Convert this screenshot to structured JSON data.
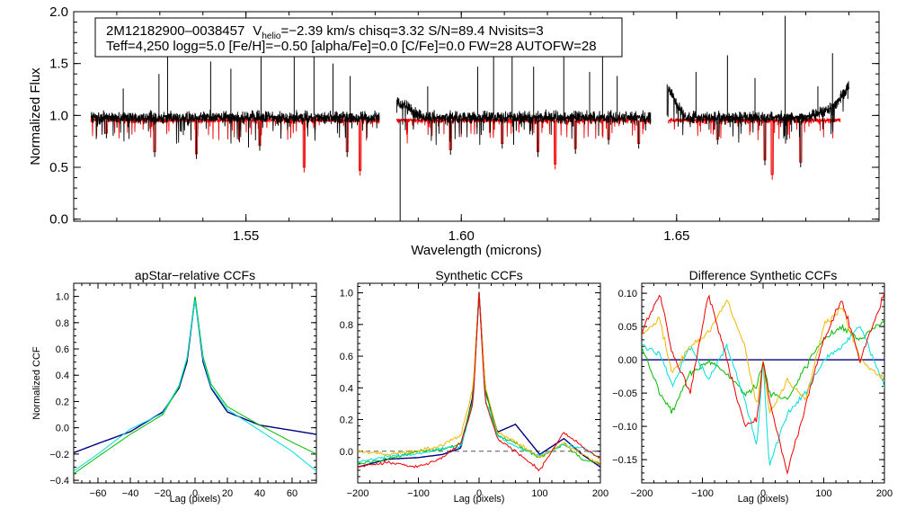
{
  "chart_data": [
    {
      "type": "line",
      "title": "",
      "xlabel": "Wavelength (microns)",
      "ylabel": "Normalized Flux",
      "xlim": [
        1.51,
        1.697
      ],
      "ylim": [
        -0.02,
        2.0
      ],
      "xticks": [
        "1.55",
        "1.60",
        "1.65"
      ],
      "yticks": [
        "0.0",
        "0.5",
        "1.0",
        "1.5",
        "2.0"
      ],
      "annotation": {
        "line1_star": "2M12182900–0038457",
        "line1_v": "V",
        "line1_sub": "helio",
        "line1_rest": "=−2.39 km/s  chisq=3.32  S/N=89.4  Nvisits=3",
        "line2": "Teff=4,250 logg=5.0 [Fe/H]=−0.50 [alpha/Fe]=0.0 [C/Fe]=0.0 FW=28 AUTOFW=28"
      },
      "series": [
        {
          "name": "observed spectrum",
          "color": "#000000",
          "segments": [
            [
              1.514,
              1.581
            ],
            [
              1.585,
              1.644
            ],
            [
              1.648,
              1.69
            ]
          ]
        },
        {
          "name": "model spectrum",
          "color": "#ee0000",
          "segments": [
            [
              1.514,
              1.581
            ],
            [
              1.585,
              1.644
            ],
            [
              1.648,
              1.688
            ]
          ]
        }
      ],
      "spikes": [
        {
          "x": 1.5215,
          "y": 1.26
        },
        {
          "x": 1.5298,
          "y": 1.4
        },
        {
          "x": 1.5318,
          "y": 1.94
        },
        {
          "x": 1.5418,
          "y": 1.52
        },
        {
          "x": 1.5465,
          "y": 1.45
        },
        {
          "x": 1.5535,
          "y": 1.58
        },
        {
          "x": 1.5612,
          "y": 1.58
        },
        {
          "x": 1.5658,
          "y": 1.94
        },
        {
          "x": 1.5702,
          "y": 1.5
        },
        {
          "x": 1.5742,
          "y": 1.38
        },
        {
          "x": 1.5922,
          "y": 1.28
        },
        {
          "x": 1.6038,
          "y": 1.47
        },
        {
          "x": 1.6075,
          "y": 1.6
        },
        {
          "x": 1.6118,
          "y": 1.58
        },
        {
          "x": 1.6168,
          "y": 1.47
        },
        {
          "x": 1.6238,
          "y": 1.62
        },
        {
          "x": 1.6298,
          "y": 1.42
        },
        {
          "x": 1.6328,
          "y": 1.95
        },
        {
          "x": 1.6362,
          "y": 1.38
        },
        {
          "x": 1.6478,
          "y": 1.3
        },
        {
          "x": 1.6545,
          "y": 1.42
        },
        {
          "x": 1.6618,
          "y": 1.58
        },
        {
          "x": 1.6682,
          "y": 1.36
        },
        {
          "x": 1.6752,
          "y": 1.96
        },
        {
          "x": 1.6828,
          "y": 1.28
        },
        {
          "x": 1.6862,
          "y": 1.6
        }
      ],
      "dips": [
        {
          "x": 1.5176,
          "y": 0.78
        },
        {
          "x": 1.5288,
          "y": 0.6
        },
        {
          "x": 1.5385,
          "y": 0.58
        },
        {
          "x": 1.5532,
          "y": 0.66
        },
        {
          "x": 1.5635,
          "y": 0.45
        },
        {
          "x": 1.5735,
          "y": 0.6
        },
        {
          "x": 1.5765,
          "y": 0.42
        },
        {
          "x": 1.5858,
          "y": -0.02
        },
        {
          "x": 1.5975,
          "y": 0.62
        },
        {
          "x": 1.6095,
          "y": 0.68
        },
        {
          "x": 1.6178,
          "y": 0.6
        },
        {
          "x": 1.6218,
          "y": 0.48
        },
        {
          "x": 1.6265,
          "y": 0.63
        },
        {
          "x": 1.6342,
          "y": 0.72
        },
        {
          "x": 1.6412,
          "y": 0.68
        },
        {
          "x": 1.6595,
          "y": 0.72
        },
        {
          "x": 1.6705,
          "y": 0.52
        },
        {
          "x": 1.6722,
          "y": 0.38
        },
        {
          "x": 1.6788,
          "y": 0.5
        }
      ]
    },
    {
      "type": "line",
      "title": "apStar−relative CCFs",
      "xlabel": "Lag (pixels)",
      "ylabel": "Normalized CCF",
      "xlim": [
        -75,
        75
      ],
      "ylim": [
        -0.42,
        1.1
      ],
      "xticks": [
        "−60",
        "−40",
        "−20",
        "0",
        "20",
        "40",
        "60"
      ],
      "yticks": [
        "−0.4",
        "−0.2",
        "0.0",
        "0.2",
        "0.4",
        "0.6",
        "0.8",
        "1.0"
      ],
      "series": [
        {
          "name": "navy",
          "color": "#000080",
          "x": [
            -75,
            -60,
            -40,
            -20,
            -10,
            -5,
            0,
            5,
            10,
            20,
            40,
            60,
            75
          ],
          "values": [
            -0.19,
            -0.12,
            -0.03,
            0.12,
            0.3,
            0.5,
            0.99,
            0.5,
            0.3,
            0.12,
            0.02,
            -0.02,
            -0.05
          ]
        },
        {
          "name": "green",
          "color": "#00bb00",
          "x": [
            -75,
            -60,
            -40,
            -20,
            -10,
            -5,
            0,
            5,
            10,
            20,
            40,
            60,
            75
          ],
          "values": [
            -0.35,
            -0.22,
            -0.05,
            0.1,
            0.31,
            0.52,
            1.0,
            0.54,
            0.33,
            0.16,
            0.02,
            -0.11,
            -0.2
          ]
        },
        {
          "name": "cyan",
          "color": "#00dddd",
          "x": [
            -75,
            -60,
            -40,
            -20,
            -10,
            -5,
            0,
            5,
            10,
            20,
            40,
            60,
            75
          ],
          "values": [
            -0.33,
            -0.2,
            -0.01,
            0.11,
            0.32,
            0.53,
            0.97,
            0.52,
            0.31,
            0.14,
            -0.02,
            -0.18,
            -0.33
          ]
        }
      ]
    },
    {
      "type": "line",
      "title": "Synthetic CCFs",
      "xlabel": "Lag (pixels)",
      "ylabel": "",
      "xlim": [
        -200,
        200
      ],
      "ylim": [
        -0.2,
        1.06
      ],
      "xticks": [
        "−200",
        "−100",
        "0",
        "100",
        "200"
      ],
      "yticks": [
        "0.0",
        "0.2",
        "0.4",
        "0.6",
        "0.8",
        "1.0"
      ],
      "baseline": 0.0,
      "series": [
        {
          "name": "navy",
          "color": "#000080",
          "x": [
            -200,
            -150,
            -100,
            -60,
            -30,
            -10,
            0,
            10,
            30,
            60,
            100,
            140,
            170,
            200
          ],
          "values": [
            -0.1,
            -0.05,
            -0.04,
            -0.02,
            0.02,
            0.35,
            1.0,
            0.4,
            0.12,
            0.17,
            -0.02,
            0.08,
            -0.02,
            -0.1
          ]
        },
        {
          "name": "green",
          "color": "#00bb00",
          "x": [
            -200,
            -150,
            -100,
            -60,
            -30,
            -10,
            0,
            10,
            30,
            60,
            100,
            140,
            170,
            200
          ],
          "values": [
            -0.08,
            -0.05,
            0.0,
            0.01,
            0.05,
            0.33,
            1.0,
            0.38,
            0.1,
            0.05,
            -0.04,
            0.05,
            -0.05,
            -0.08
          ]
        },
        {
          "name": "cyan",
          "color": "#00dddd",
          "x": [
            -200,
            -150,
            -100,
            -60,
            -30,
            -10,
            0,
            10,
            30,
            60,
            100,
            140,
            170,
            200
          ],
          "values": [
            -0.07,
            -0.03,
            -0.02,
            0.02,
            0.03,
            0.3,
            1.0,
            0.33,
            0.1,
            0.03,
            -0.03,
            0.04,
            0.02,
            -0.04
          ]
        },
        {
          "name": "yellow",
          "color": "#f0b800",
          "x": [
            -200,
            -150,
            -100,
            -60,
            -30,
            -10,
            0,
            10,
            30,
            60,
            100,
            140,
            170,
            200
          ],
          "values": [
            0.0,
            -0.02,
            0.0,
            0.04,
            0.1,
            0.4,
            1.0,
            0.42,
            0.12,
            0.06,
            -0.04,
            0.05,
            -0.02,
            -0.08
          ]
        },
        {
          "name": "red",
          "color": "#ee0000",
          "x": [
            -200,
            -150,
            -100,
            -60,
            -30,
            -10,
            0,
            10,
            30,
            60,
            100,
            140,
            170,
            200
          ],
          "values": [
            -0.1,
            -0.07,
            -0.1,
            -0.04,
            0.05,
            0.3,
            1.0,
            0.32,
            0.08,
            0.0,
            -0.12,
            0.12,
            0.03,
            -0.05
          ]
        }
      ]
    },
    {
      "type": "line",
      "title": "Difference Synthetic CCFs",
      "xlabel": "Lag (pixels)",
      "ylabel": "",
      "xlim": [
        -200,
        200
      ],
      "ylim": [
        -0.185,
        0.115
      ],
      "xticks": [
        "−200",
        "−100",
        "0",
        "100",
        "200"
      ],
      "yticks": [
        "−0.15",
        "−0.10",
        "−0.05",
        "0.00",
        "0.05",
        "0.10"
      ],
      "baseline": 0.0,
      "series": [
        {
          "name": "navy",
          "color": "#000080",
          "x": [
            -200,
            200
          ],
          "values": [
            0.0,
            0.0
          ]
        },
        {
          "name": "green",
          "color": "#00bb00",
          "x": [
            -200,
            -170,
            -150,
            -120,
            -90,
            -60,
            -30,
            -10,
            0,
            10,
            40,
            70,
            100,
            130,
            160,
            200
          ],
          "values": [
            0.02,
            -0.05,
            -0.08,
            -0.02,
            0.0,
            -0.02,
            -0.05,
            -0.04,
            0.0,
            -0.05,
            -0.06,
            -0.01,
            0.03,
            0.05,
            0.03,
            0.06
          ]
        },
        {
          "name": "cyan",
          "color": "#00dddd",
          "x": [
            -200,
            -170,
            -150,
            -120,
            -90,
            -60,
            -30,
            -10,
            0,
            10,
            40,
            70,
            100,
            130,
            160,
            200
          ],
          "values": [
            0.02,
            0.01,
            -0.04,
            0.02,
            -0.03,
            0.02,
            -0.06,
            -0.13,
            0.0,
            -0.16,
            -0.08,
            -0.05,
            0.0,
            0.02,
            0.05,
            -0.04
          ]
        },
        {
          "name": "yellow",
          "color": "#f0b800",
          "x": [
            -200,
            -170,
            -150,
            -120,
            -90,
            -60,
            -30,
            -10,
            0,
            10,
            40,
            70,
            100,
            130,
            160,
            200
          ],
          "values": [
            0.04,
            0.06,
            -0.02,
            0.02,
            0.04,
            0.09,
            0.02,
            -0.07,
            0.0,
            -0.08,
            -0.03,
            -0.06,
            0.05,
            0.08,
            0.0,
            -0.03
          ]
        },
        {
          "name": "red",
          "color": "#ee0000",
          "x": [
            -200,
            -170,
            -150,
            -120,
            -90,
            -60,
            -30,
            -10,
            0,
            10,
            40,
            70,
            100,
            130,
            160,
            200
          ],
          "values": [
            0.04,
            0.1,
            0.01,
            -0.05,
            0.1,
            0.0,
            -0.1,
            -0.09,
            0.0,
            -0.06,
            -0.17,
            -0.07,
            0.03,
            0.09,
            0.0,
            0.1
          ]
        }
      ]
    }
  ]
}
